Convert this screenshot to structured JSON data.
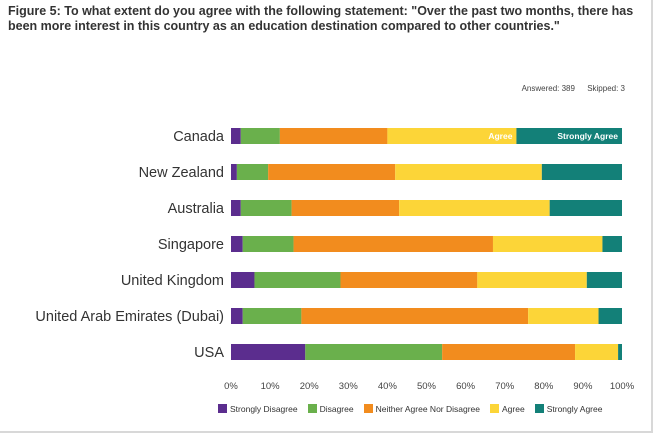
{
  "figure_title": "Figure 5: To what extent do you agree with the following statement: \"Over the past two months, there has been more interest in this country as an education destination compared to other countries.\"",
  "answered": "Answered: 389",
  "skipped": "Skipped: 3",
  "chart_data": {
    "type": "bar",
    "orientation": "horizontal",
    "stacked": true,
    "percent": true,
    "categories": [
      "Canada",
      "New Zealand",
      "Australia",
      "Singapore",
      "United Kingdom",
      "United Arab Emirates (Dubai)",
      "USA"
    ],
    "series": [
      {
        "name": "Strongly Disagree",
        "color": "#5b2d8e",
        "values": [
          2.5,
          1.5,
          2.5,
          3,
          6,
          3,
          19
        ]
      },
      {
        "name": "Disagree",
        "color": "#6ab04c",
        "values": [
          10,
          8,
          13,
          13,
          22,
          15,
          35
        ]
      },
      {
        "name": "Neither Agree Nor Disagree",
        "color": "#f28c1e",
        "values": [
          27.5,
          32.5,
          27.5,
          51,
          35,
          58,
          34
        ]
      },
      {
        "name": "Agree",
        "color": "#fcd538",
        "values": [
          33,
          37.5,
          38.5,
          28,
          28,
          18,
          11
        ]
      },
      {
        "name": "Strongly Agree",
        "color": "#138078",
        "values": [
          27,
          20.5,
          18.5,
          5,
          9,
          6,
          1
        ]
      }
    ],
    "bar_labels": {
      "Canada": {
        "Agree": "Agree",
        "Strongly Agree": "Strongly Agree"
      }
    },
    "xlim": [
      0,
      100
    ],
    "xticks": [
      "0%",
      "10%",
      "20%",
      "30%",
      "40%",
      "50%",
      "60%",
      "70%",
      "80%",
      "90%",
      "100%"
    ],
    "legend_position": "bottom"
  }
}
